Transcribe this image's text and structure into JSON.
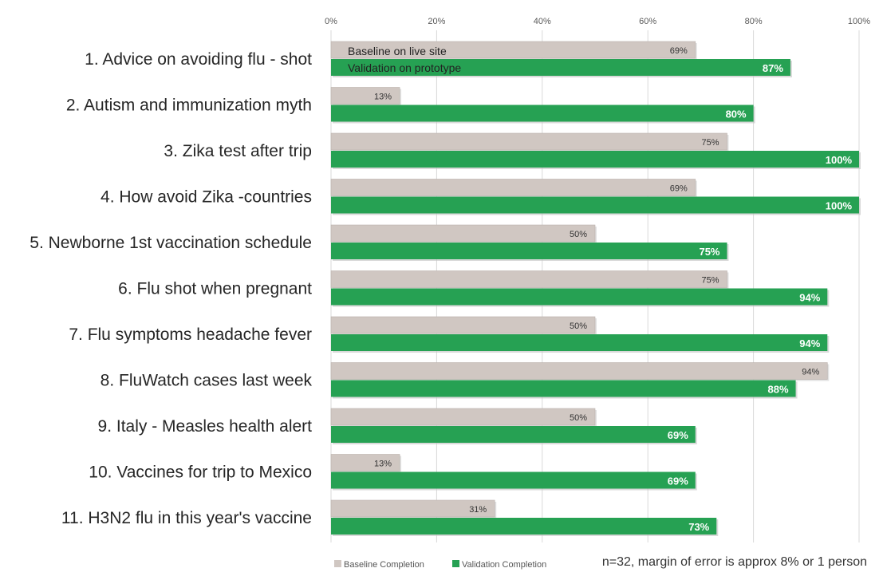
{
  "chart_data": {
    "type": "bar",
    "orientation": "horizontal",
    "x_ticks": [
      "0%",
      "20%",
      "40%",
      "60%",
      "80%",
      "100%"
    ],
    "xlim": [
      0,
      100
    ],
    "grid": true,
    "legend_placement": "bottom",
    "categories": [
      "1. Advice on avoiding flu - shot",
      "2. Autism and immunization myth",
      "3. Zika test after trip",
      "4. How avoid Zika -countries",
      "5. Newborne 1st vaccination schedule",
      "6. Flu shot when pregnant",
      "7. Flu symptoms headache fever",
      "8. FluWatch cases last week",
      "9. Italy - Measles health alert",
      "10. Vaccines for trip to Mexico",
      "11. H3N2 flu in this year's vaccine"
    ],
    "series": [
      {
        "name": "Baseline Completion",
        "color": "#d0c7c2",
        "values": [
          69,
          13,
          75,
          69,
          50,
          75,
          50,
          94,
          50,
          13,
          31
        ],
        "labels": [
          "69%",
          "13%",
          "75%",
          "69%",
          "50%",
          "75%",
          "50%",
          "94%",
          "50%",
          "13%",
          "31%"
        ]
      },
      {
        "name": "Validation Completion",
        "color": "#26a153",
        "values": [
          87,
          80,
          100,
          100,
          75,
          94,
          94,
          88,
          69,
          69,
          73
        ],
        "labels": [
          "87%",
          "80%",
          "100%",
          "100%",
          "75%",
          "94%",
          "94%",
          "88%",
          "69%",
          "69%",
          "73%"
        ]
      }
    ],
    "annotations": {
      "baseline_inbar": "Baseline on live site",
      "validation_inbar": "Validation on prototype",
      "note": "n=32, margin of error is approx 8% or 1 person"
    }
  }
}
